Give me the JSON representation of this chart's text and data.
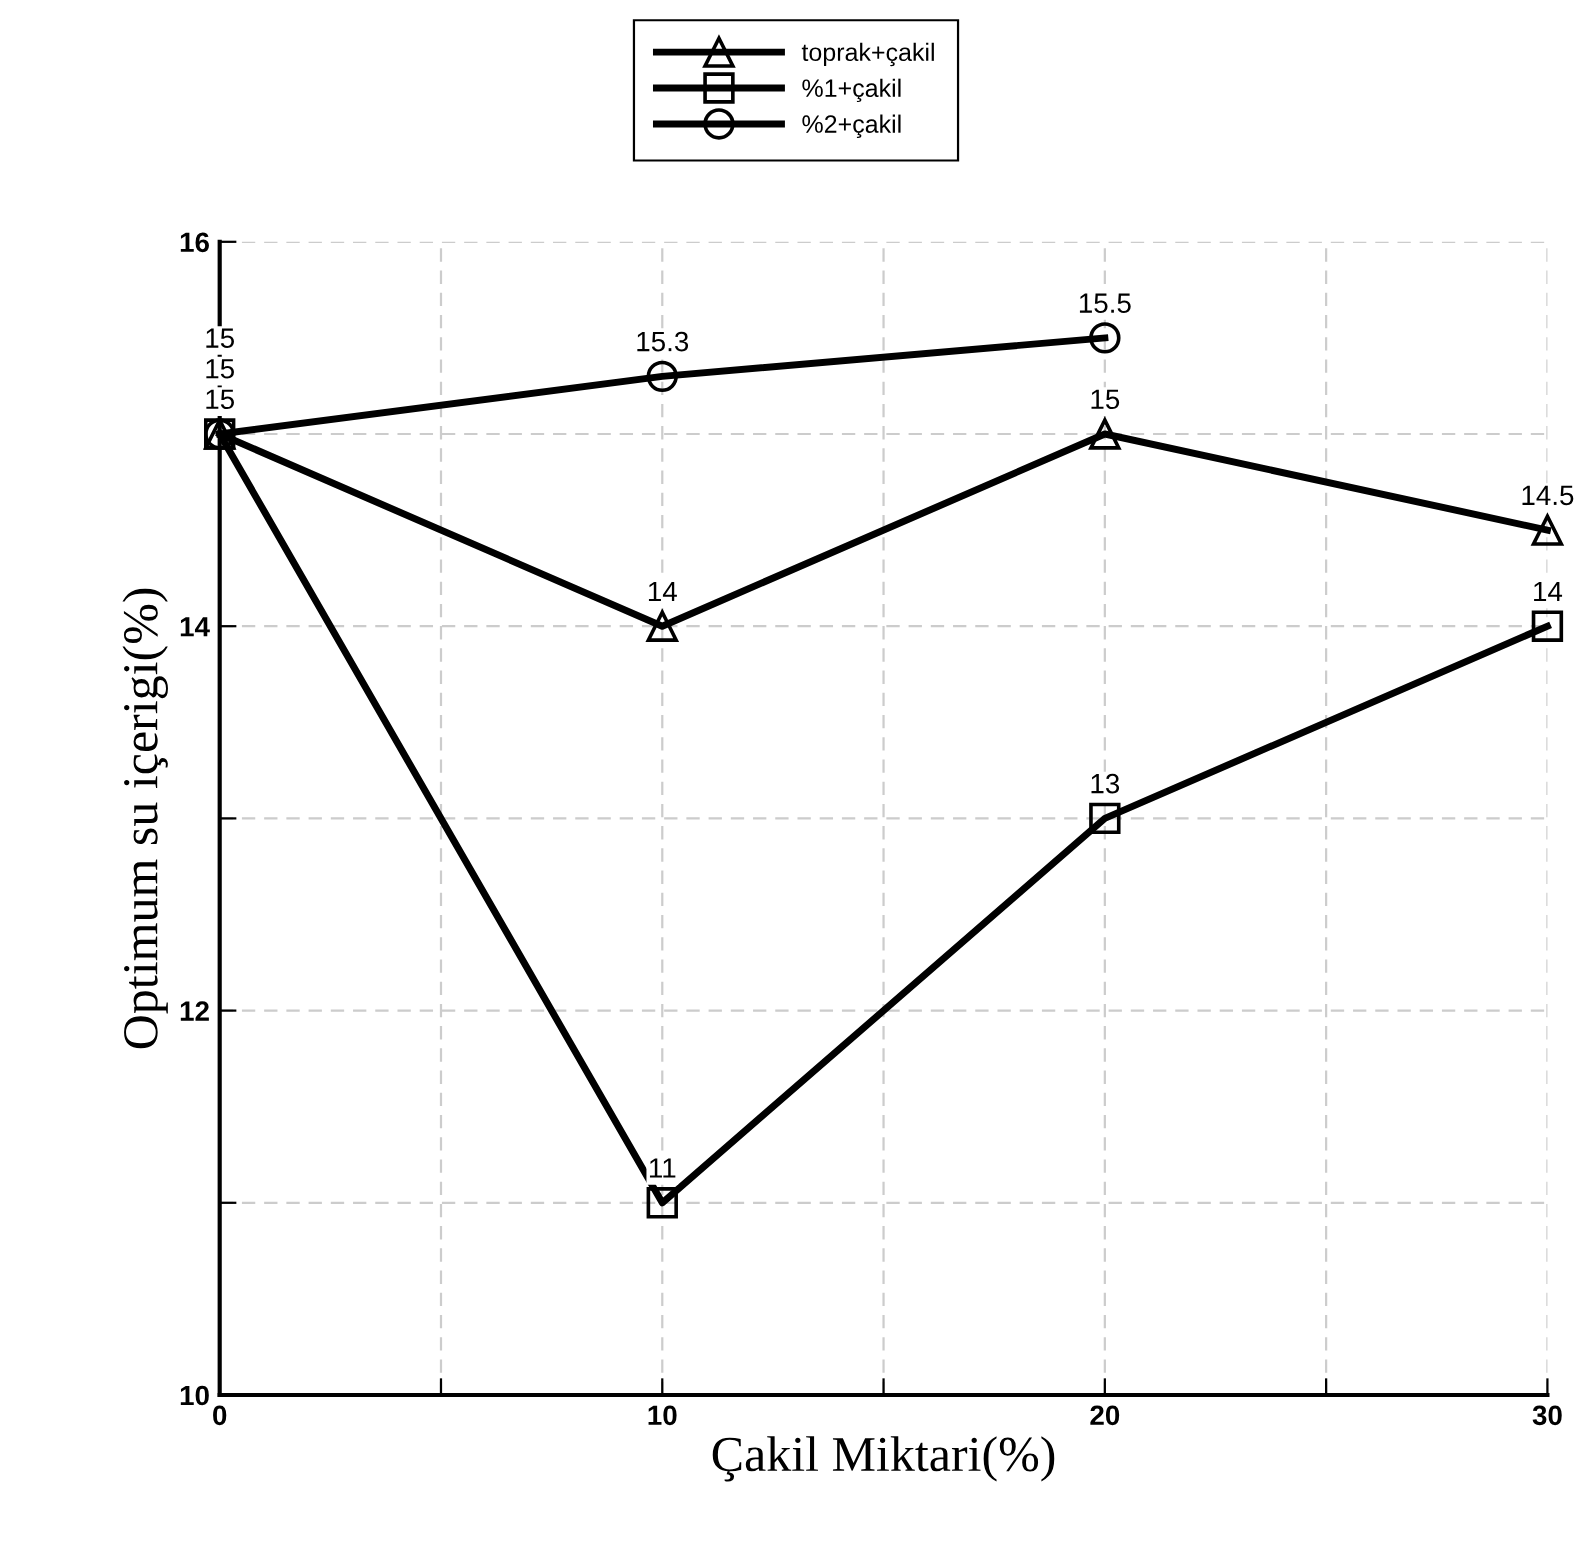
{
  "chart_data": {
    "type": "line",
    "xlabel": "Çakil Miktari(%)",
    "ylabel": "Optimum su içerigi(%)",
    "x": [
      0,
      10,
      20,
      30
    ],
    "series": [
      {
        "name": "toprak+çakil",
        "color": "#000000",
        "marker": "triangle",
        "values": [
          15,
          14,
          15,
          14.5
        ]
      },
      {
        "name": "%1+çakil",
        "color": "#000000",
        "marker": "square",
        "values": [
          15,
          11,
          13,
          14
        ]
      },
      {
        "name": "%2+çakil",
        "color": "#000000",
        "marker": "circle",
        "values": [
          15,
          15.3,
          15.5,
          null
        ]
      }
    ],
    "xlim": [
      0,
      30
    ],
    "xticks": [
      0,
      {
        "value": 5,
        "label": null
      },
      10,
      {
        "value": 15,
        "label": null
      },
      20,
      {
        "value": 25,
        "label": null
      },
      30
    ],
    "ylim": [
      10,
      16
    ],
    "yticks": [
      10,
      {
        "value": 11,
        "label": null
      },
      12,
      {
        "value": 13,
        "label": null
      },
      14,
      {
        "value": 15,
        "label": null
      },
      16
    ],
    "grid": true,
    "legend": "top",
    "data_labels": true,
    "line_style": "solid"
  }
}
